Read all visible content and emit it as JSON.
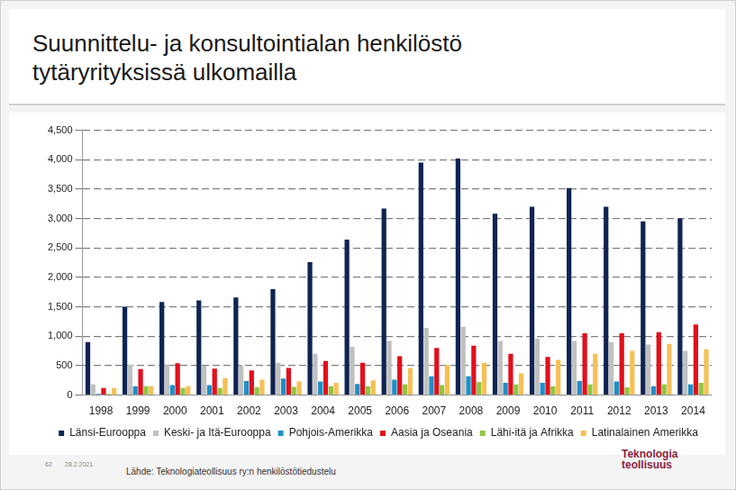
{
  "chart_data": {
    "type": "bar",
    "title": "Suunnittelu- ja konsultointialan henkilöstö\ntytäryrityksissä ulkomailla",
    "categories": [
      "1998",
      "1999",
      "2000",
      "2001",
      "2002",
      "2003",
      "2004",
      "2005",
      "2006",
      "2007",
      "2008",
      "2009",
      "2010",
      "2011",
      "2012",
      "2013",
      "2014"
    ],
    "series": [
      {
        "name": "Länsi-Eurooppa",
        "color": "#0f2452",
        "values": [
          900,
          1500,
          1580,
          1610,
          1660,
          1800,
          2260,
          2640,
          3170,
          3950,
          4020,
          3080,
          3200,
          3520,
          3200,
          2950,
          3000
        ]
      },
      {
        "name": "Keski- ja Itä-Eurooppa",
        "color": "#c0c0c0",
        "values": [
          180,
          520,
          520,
          500,
          500,
          550,
          700,
          820,
          920,
          1140,
          1160,
          920,
          960,
          920,
          900,
          860,
          750
        ]
      },
      {
        "name": "Pohjois-Amerikka",
        "color": "#1d8fc9",
        "values": [
          20,
          150,
          170,
          170,
          240,
          280,
          230,
          190,
          260,
          320,
          320,
          210,
          210,
          240,
          230,
          150,
          180
        ]
      },
      {
        "name": "Aasia ja Oseania",
        "color": "#e30f1b",
        "values": [
          120,
          440,
          540,
          450,
          420,
          460,
          580,
          550,
          660,
          800,
          840,
          700,
          650,
          1050,
          1050,
          1070,
          1200
        ]
      },
      {
        "name": "Lähi-itä ja Afrikka",
        "color": "#8fc641",
        "values": [
          20,
          150,
          120,
          120,
          130,
          140,
          150,
          150,
          180,
          170,
          220,
          180,
          150,
          180,
          130,
          180,
          210
        ]
      },
      {
        "name": "Latinalainen Amerikka",
        "color": "#f6c056",
        "values": [
          120,
          150,
          150,
          290,
          260,
          230,
          210,
          250,
          460,
          510,
          550,
          370,
          600,
          700,
          750,
          870,
          780
        ]
      }
    ],
    "ylim": [
      0,
      4500
    ],
    "yticks": [
      0,
      500,
      {
        "value": 1000,
        "label": "1,000"
      },
      {
        "value": 1500,
        "label": "1,500"
      },
      {
        "value": 2000,
        "label": "2,000"
      },
      {
        "value": 2500,
        "label": "2,500"
      },
      {
        "value": 3000,
        "label": "3,000"
      },
      {
        "value": 3500,
        "label": "3,500"
      },
      {
        "value": 4000,
        "label": "4,000"
      },
      {
        "value": 4500,
        "label": "4,500"
      }
    ],
    "grid": true,
    "legend": "bottom",
    "source": "Lähde: Teknologiateollisuus ry:n henkilöstötiedustelu",
    "page_number": "62",
    "date": "28.2.2021",
    "logo": [
      "Teknologia",
      "teollisuus"
    ]
  }
}
